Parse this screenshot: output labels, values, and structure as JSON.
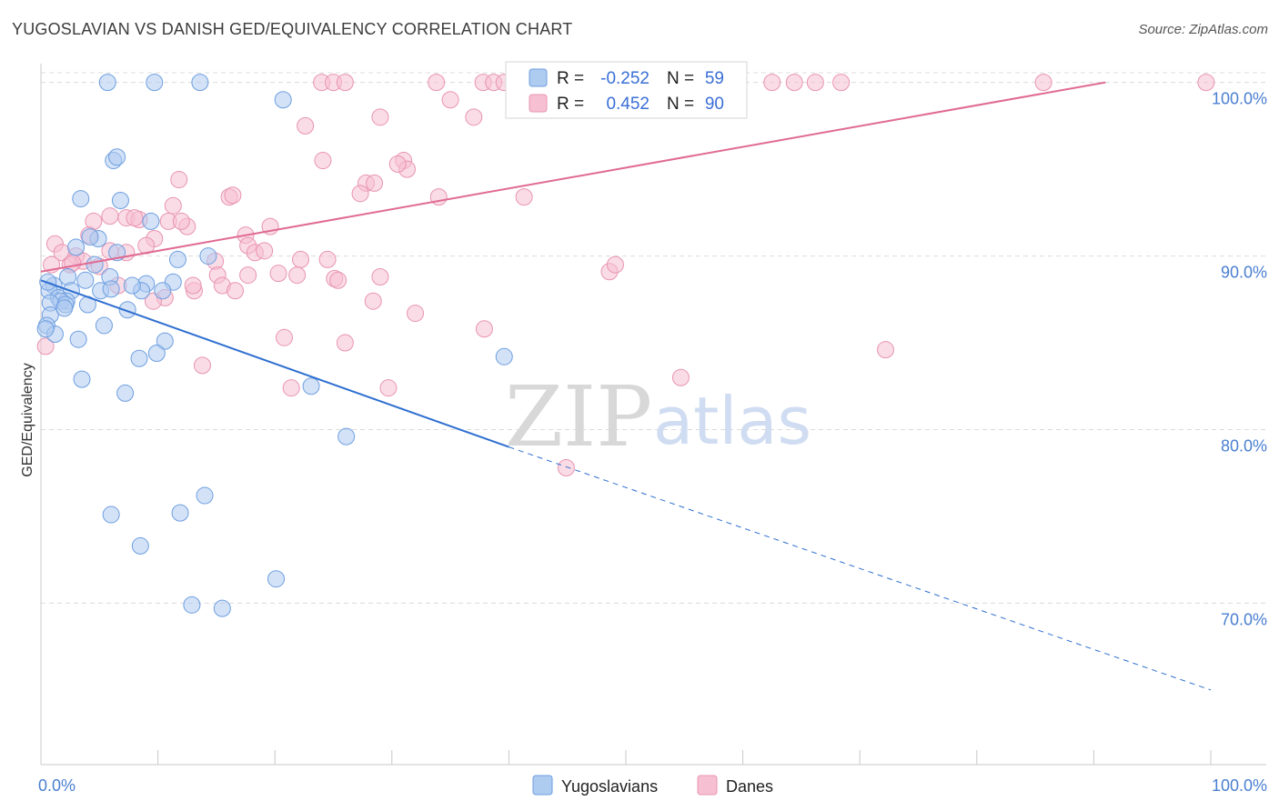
{
  "title": "YUGOSLAVIAN VS DANISH GED/EQUIVALENCY CORRELATION CHART",
  "source": "Source: ZipAtlas.com",
  "watermark": {
    "zip": "ZIP",
    "atlas": "atlas"
  },
  "legend": {
    "r_label": "R =",
    "n_label": "N =",
    "rows": [
      {
        "name": "Yugoslavians",
        "r": "-0.252",
        "n": "59"
      },
      {
        "name": "Danes",
        "r": "0.452",
        "n": "90"
      }
    ]
  },
  "colors": {
    "yugo_fill": "#aecbf0",
    "yugo_stroke": "#6e9fe0",
    "yugo_line": "#2f6fd0",
    "danes_fill": "#f6c0d2",
    "danes_stroke": "#e894b2",
    "danes_line": "#e06a93",
    "grid": "#dcdcdc",
    "tick_text": "#4a7fd0"
  },
  "chart_data": {
    "type": "scatter",
    "title": "YUGOSLAVIAN VS DANISH GED/EQUIVALENCY CORRELATION CHART",
    "xlabel": "",
    "ylabel": "GED/Equivalency",
    "xlim": [
      0,
      100
    ],
    "ylim": [
      60.7,
      101.5
    ],
    "x_tick_labels": [
      "0.0%",
      "100.0%"
    ],
    "y_ticks": [
      {
        "value": 70,
        "label": "70.0%"
      },
      {
        "value": 80,
        "label": "80.0%"
      },
      {
        "value": 90,
        "label": "90.0%"
      },
      {
        "value": 100,
        "label": "100.0%"
      }
    ],
    "grid": true,
    "legend_position": "top-center",
    "series": [
      {
        "name": "Yugoslavians",
        "r": -0.252,
        "n": 59,
        "trend": {
          "x0": 0,
          "y0": 88.6,
          "x1": 40,
          "y1": 79.0,
          "dashed_to_x": 100,
          "dashed_to_y": 65.0
        },
        "points": [
          [
            5.7,
            100
          ],
          [
            9.7,
            100
          ],
          [
            13.6,
            100
          ],
          [
            20.7,
            99
          ],
          [
            6.2,
            95.5
          ],
          [
            6.5,
            95.7
          ],
          [
            3.4,
            93.3
          ],
          [
            6.8,
            93.2
          ],
          [
            9.4,
            92
          ],
          [
            4.9,
            91
          ],
          [
            3.0,
            90.5
          ],
          [
            6.5,
            90.2
          ],
          [
            14.3,
            90
          ],
          [
            11.7,
            89.8
          ],
          [
            4.6,
            89.5
          ],
          [
            2.3,
            88.8
          ],
          [
            3.8,
            88.6
          ],
          [
            5.9,
            88.8
          ],
          [
            9.0,
            88.4
          ],
          [
            11.3,
            88.5
          ],
          [
            1.1,
            88.3
          ],
          [
            0.7,
            88.0
          ],
          [
            2.6,
            88.0
          ],
          [
            5.1,
            88.0
          ],
          [
            8.6,
            88.0
          ],
          [
            10.4,
            88.0
          ],
          [
            1.5,
            87.6
          ],
          [
            2.2,
            87.4
          ],
          [
            1.7,
            87.4
          ],
          [
            0.8,
            87.3
          ],
          [
            2.1,
            87.2
          ],
          [
            4.0,
            87.2
          ],
          [
            7.4,
            86.9
          ],
          [
            0.8,
            86.6
          ],
          [
            0.5,
            86.0
          ],
          [
            5.4,
            86.0
          ],
          [
            1.2,
            85.5
          ],
          [
            3.2,
            85.2
          ],
          [
            10.6,
            85.1
          ],
          [
            9.9,
            84.4
          ],
          [
            8.4,
            84.1
          ],
          [
            39.6,
            84.2
          ],
          [
            3.5,
            82.9
          ],
          [
            23.1,
            82.5
          ],
          [
            7.2,
            82.1
          ],
          [
            26.1,
            79.6
          ],
          [
            14.0,
            76.2
          ],
          [
            6.0,
            75.1
          ],
          [
            11.9,
            75.2
          ],
          [
            8.5,
            73.3
          ],
          [
            20.1,
            71.4
          ],
          [
            12.9,
            69.9
          ],
          [
            15.5,
            69.7
          ],
          [
            0.6,
            88.5
          ],
          [
            2.0,
            87.0
          ],
          [
            6.0,
            88.1
          ],
          [
            7.8,
            88.3
          ],
          [
            0.4,
            85.8
          ],
          [
            4.2,
            91.1
          ]
        ]
      },
      {
        "name": "Danes",
        "r": 0.452,
        "n": 90,
        "trend": {
          "x0": 0,
          "y0": 89.1,
          "x1": 91,
          "y1": 100
        },
        "points": [
          [
            24.0,
            100
          ],
          [
            25.0,
            100
          ],
          [
            26.0,
            100
          ],
          [
            33.8,
            100
          ],
          [
            37.8,
            100
          ],
          [
            38.7,
            100
          ],
          [
            39.6,
            100
          ],
          [
            44.1,
            100
          ],
          [
            45.3,
            100
          ],
          [
            58.4,
            100
          ],
          [
            62.5,
            100
          ],
          [
            64.4,
            100
          ],
          [
            66.2,
            100
          ],
          [
            68.4,
            100
          ],
          [
            85.7,
            100
          ],
          [
            99.6,
            100
          ],
          [
            35.0,
            99.0
          ],
          [
            29.0,
            98.0
          ],
          [
            37.0,
            98.0
          ],
          [
            22.6,
            97.5
          ],
          [
            24.1,
            95.5
          ],
          [
            31.0,
            95.5
          ],
          [
            31.3,
            95.0
          ],
          [
            27.8,
            94.2
          ],
          [
            28.5,
            94.2
          ],
          [
            11.8,
            94.4
          ],
          [
            27.3,
            93.6
          ],
          [
            16.1,
            93.4
          ],
          [
            34.0,
            93.4
          ],
          [
            41.3,
            93.4
          ],
          [
            11.3,
            92.9
          ],
          [
            5.9,
            92.3
          ],
          [
            7.3,
            92.2
          ],
          [
            4.5,
            92.0
          ],
          [
            8.4,
            92.1
          ],
          [
            10.9,
            92.0
          ],
          [
            12.5,
            91.7
          ],
          [
            19.6,
            91.7
          ],
          [
            17.5,
            91.2
          ],
          [
            4.1,
            91.2
          ],
          [
            9.7,
            91.0
          ],
          [
            1.2,
            90.7
          ],
          [
            1.8,
            90.2
          ],
          [
            3.0,
            90.0
          ],
          [
            5.9,
            90.3
          ],
          [
            7.3,
            90.2
          ],
          [
            17.7,
            90.6
          ],
          [
            18.3,
            90.2
          ],
          [
            19.1,
            90.3
          ],
          [
            22.2,
            89.8
          ],
          [
            9.0,
            90.6
          ],
          [
            3.6,
            89.7
          ],
          [
            2.5,
            89.5
          ],
          [
            0.9,
            89.5
          ],
          [
            14.9,
            89.7
          ],
          [
            15.1,
            88.9
          ],
          [
            17.7,
            88.9
          ],
          [
            20.3,
            89.0
          ],
          [
            21.9,
            88.9
          ],
          [
            25.1,
            88.7
          ],
          [
            25.4,
            88.6
          ],
          [
            29.0,
            88.8
          ],
          [
            48.6,
            89.1
          ],
          [
            49.1,
            89.5
          ],
          [
            6.6,
            88.3
          ],
          [
            13.1,
            88.0
          ],
          [
            13.0,
            88.3
          ],
          [
            15.5,
            88.3
          ],
          [
            16.6,
            88.0
          ],
          [
            10.6,
            87.6
          ],
          [
            9.6,
            87.4
          ],
          [
            28.4,
            87.4
          ],
          [
            32.0,
            86.7
          ],
          [
            37.9,
            85.8
          ],
          [
            20.8,
            85.3
          ],
          [
            26.0,
            85.0
          ],
          [
            0.4,
            84.8
          ],
          [
            72.2,
            84.6
          ],
          [
            13.8,
            83.7
          ],
          [
            54.7,
            83.0
          ],
          [
            21.4,
            82.4
          ],
          [
            29.7,
            82.4
          ],
          [
            44.9,
            77.8
          ],
          [
            12.0,
            92.0
          ],
          [
            2.7,
            89.6
          ],
          [
            16.4,
            93.5
          ],
          [
            5.0,
            89.4
          ],
          [
            8.0,
            92.2
          ],
          [
            30.5,
            95.3
          ],
          [
            24.5,
            89.8
          ]
        ]
      }
    ]
  }
}
